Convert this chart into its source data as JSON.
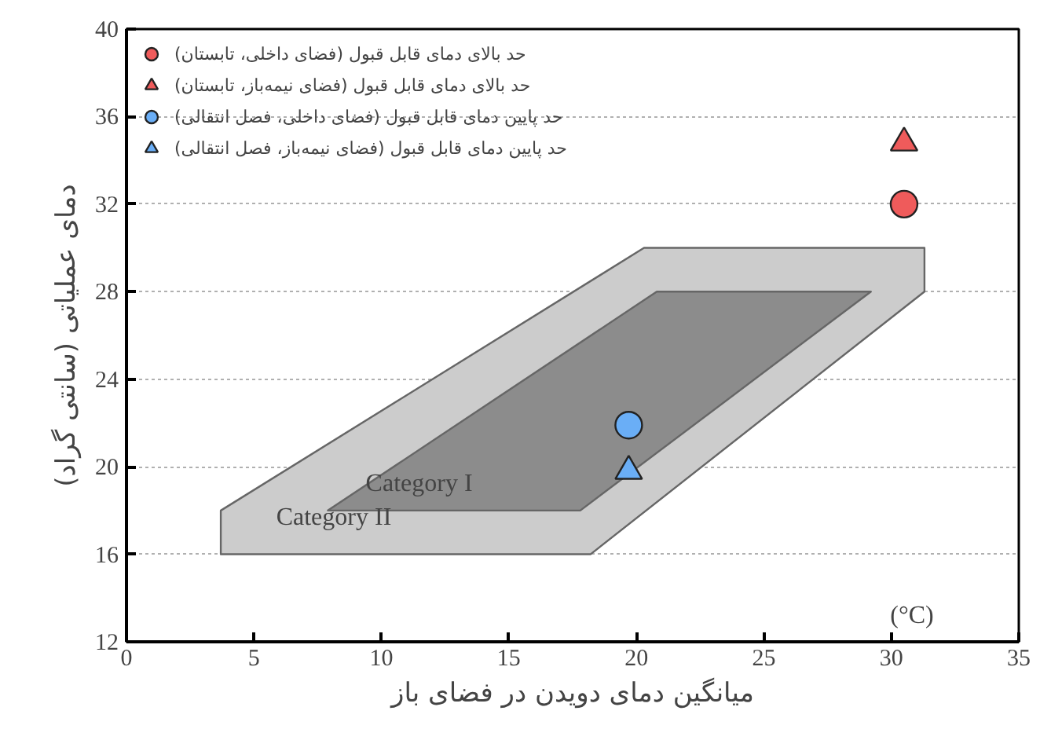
{
  "chart_data": {
    "type": "scatter",
    "xlabel": "میانگین دمای دویدن در فضای باز",
    "ylabel": "دمای عملیاتی (سانتی گراد)",
    "xlim": [
      0,
      35
    ],
    "xticks": [
      0,
      5,
      10,
      15,
      20,
      25,
      30,
      35
    ],
    "ylim": [
      12,
      40
    ],
    "yticks": [
      12,
      16,
      20,
      24,
      28,
      32,
      36,
      40
    ],
    "grid": "y",
    "legend": "top left",
    "series": [
      {
        "type": "area",
        "name": "Category II",
        "color": "#cccccc",
        "x": [
          3.7,
          18.2,
          31.3,
          31.3,
          20.3,
          3.7
        ],
        "values": [
          16,
          16,
          28,
          30,
          30,
          18
        ]
      },
      {
        "type": "area",
        "name": "Category I",
        "color": "#8c8c8c",
        "x": [
          7.9,
          17.8,
          29.2,
          20.8
        ],
        "values": [
          18,
          18,
          28,
          28
        ]
      },
      {
        "name": "حد بالای دمای قابل قبول (فضای داخلی، تابستان)",
        "color": "#ef5b5b",
        "marker": "circle",
        "x": [
          30.5
        ],
        "values": [
          32
        ]
      },
      {
        "name": "حد بالای دمای قابل قبول (فضای نیمه‌باز، تابستان)",
        "color": "#ef5b5b",
        "marker": "triangle",
        "x": [
          30.5
        ],
        "values": [
          34.8
        ]
      },
      {
        "name": "حد پایین دمای قابل قبول (فضای داخلی، فصل انتقالی)",
        "color": "#6aaef6",
        "marker": "circle",
        "x": [
          19.7
        ],
        "values": [
          21.9
        ]
      },
      {
        "name": "حد پایین دمای قابل قبول (فضای نیمه‌باز، فصل انتقالی)",
        "color": "#6aaef6",
        "marker": "triangle",
        "x": [
          19.7
        ],
        "values": [
          19.8
        ]
      }
    ],
    "annotations": [
      "(°C)"
    ]
  }
}
